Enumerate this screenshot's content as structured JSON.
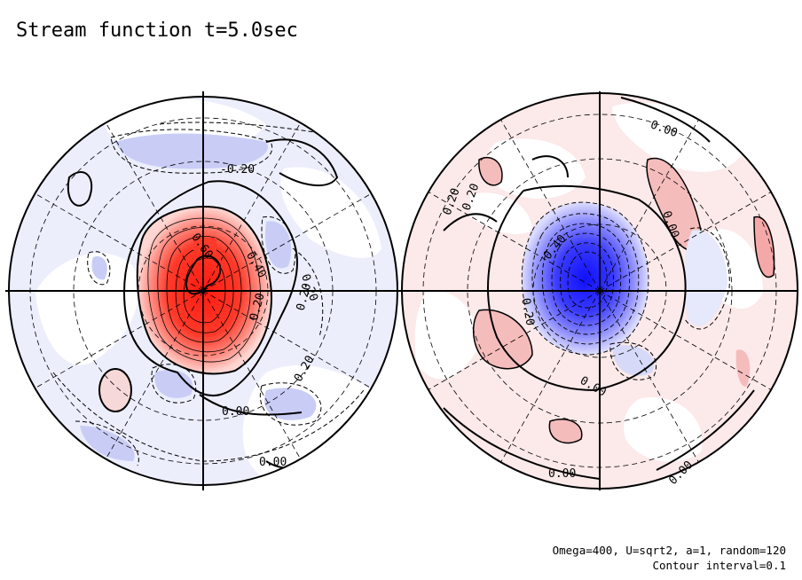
{
  "title": "Stream function t=5.0sec",
  "footer": {
    "line1": "Omega=400, U=sqrt2, a=1, random=120",
    "line2": "Contour interval=0.1"
  },
  "colors": {
    "positive_strong": "#ff2a1a",
    "positive_weak": "#fbe6e6",
    "negative_strong": "#1a1aff",
    "negative_weak": "#e6e8fb",
    "contour": "#000000"
  },
  "hemispheres": [
    {
      "name": "left hemisphere",
      "contour_labels": [
        "0.60",
        "0.40",
        "0.20",
        "-0.20",
        "0.20",
        "0.20",
        "0.00",
        "0.00",
        "0.20"
      ]
    },
    {
      "name": "right hemisphere",
      "contour_labels": [
        "0.00",
        "0.20",
        "0.20",
        "0.00",
        "0.40",
        "0.20",
        "0.00",
        "0.00",
        "0.00"
      ]
    }
  ]
}
